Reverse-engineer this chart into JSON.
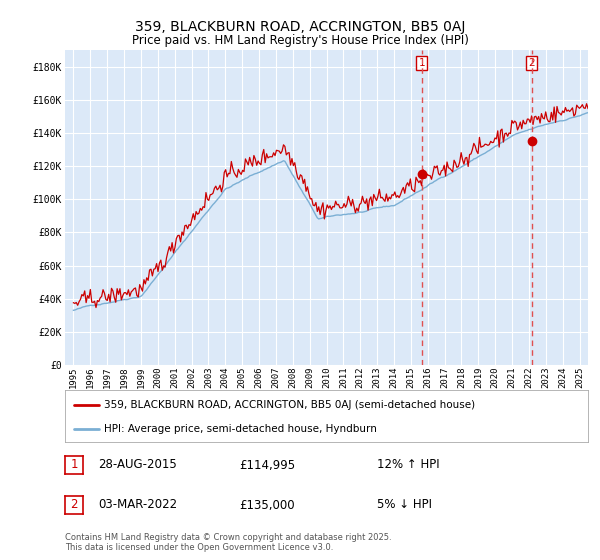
{
  "title": "359, BLACKBURN ROAD, ACCRINGTON, BB5 0AJ",
  "subtitle": "Price paid vs. HM Land Registry's House Price Index (HPI)",
  "red_label": "359, BLACKBURN ROAD, ACCRINGTON, BB5 0AJ (semi-detached house)",
  "blue_label": "HPI: Average price, semi-detached house, Hyndburn",
  "annotation1_date": "28-AUG-2015",
  "annotation1_price": "£114,995",
  "annotation1_hpi": "12% ↑ HPI",
  "annotation2_date": "03-MAR-2022",
  "annotation2_price": "£135,000",
  "annotation2_hpi": "5% ↓ HPI",
  "vline1_x": 2015.65,
  "vline2_x": 2022.17,
  "marker1_y": 114995,
  "marker2_y": 135000,
  "ylim_min": 0,
  "ylim_max": 190000,
  "xlim_min": 1994.5,
  "xlim_max": 2025.5,
  "background_color": "#ffffff",
  "plot_bg_color": "#dce9f8",
  "grid_color": "#ffffff",
  "red_color": "#cc0000",
  "blue_color": "#7bafd4",
  "vline_color": "#e05050",
  "footer": "Contains HM Land Registry data © Crown copyright and database right 2025.\nThis data is licensed under the Open Government Licence v3.0.",
  "yticks": [
    0,
    20000,
    40000,
    60000,
    80000,
    100000,
    120000,
    140000,
    160000,
    180000
  ],
  "ytick_labels": [
    "£0",
    "£20K",
    "£40K",
    "£60K",
    "£80K",
    "£100K",
    "£120K",
    "£140K",
    "£160K",
    "£180K"
  ],
  "xticks": [
    1995,
    1996,
    1997,
    1998,
    1999,
    2000,
    2001,
    2002,
    2003,
    2004,
    2005,
    2006,
    2007,
    2008,
    2009,
    2010,
    2011,
    2012,
    2013,
    2014,
    2015,
    2016,
    2017,
    2018,
    2019,
    2020,
    2021,
    2022,
    2023,
    2024,
    2025
  ]
}
